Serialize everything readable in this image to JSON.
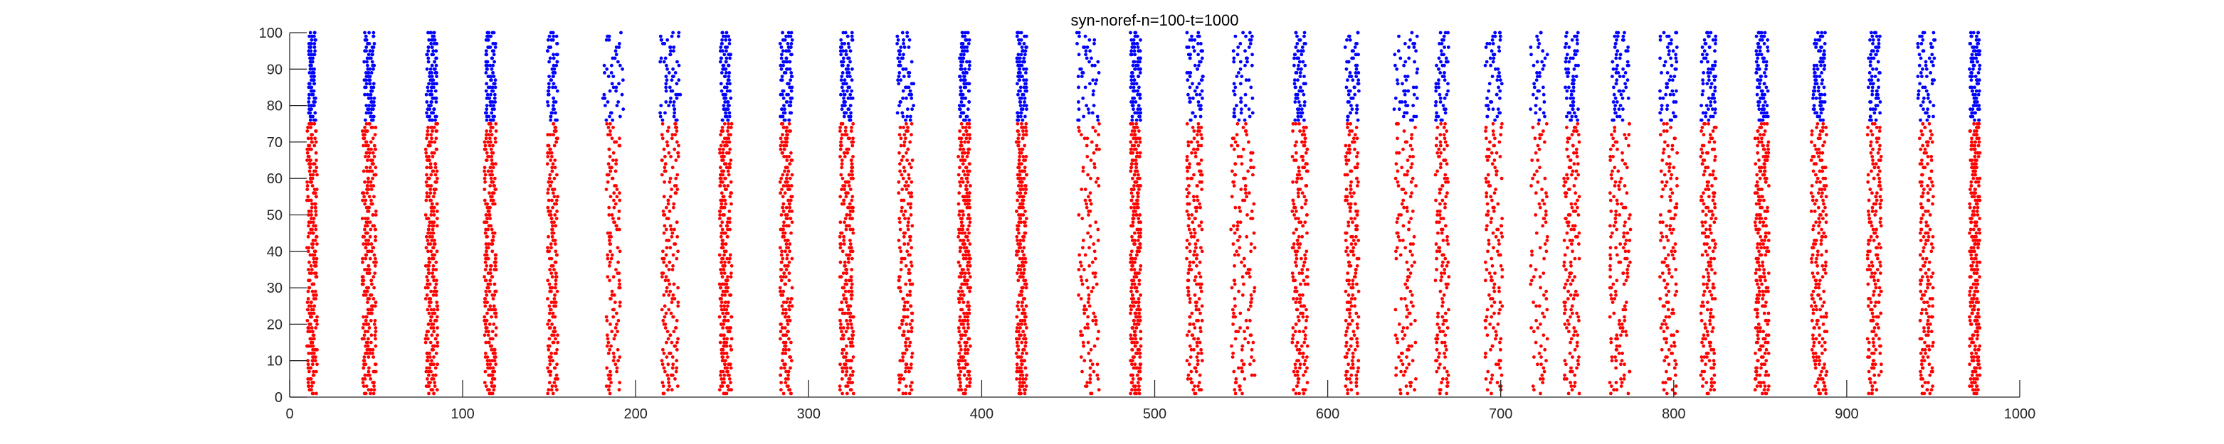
{
  "chart_data": {
    "type": "scatter",
    "title": "syn-noref-n=100-t=1000",
    "xlabel": "",
    "ylabel": "",
    "xlim": [
      0,
      1000
    ],
    "ylim": [
      0,
      100
    ],
    "xticks": [
      0,
      100,
      200,
      300,
      400,
      500,
      600,
      700,
      800,
      900,
      1000
    ],
    "yticks": [
      0,
      10,
      20,
      30,
      40,
      50,
      60,
      70,
      80,
      90,
      100
    ],
    "grid": false,
    "legend": "none",
    "series": [
      {
        "color": "#ff0000",
        "neurons": [
          1,
          75
        ]
      },
      {
        "color": "#0000ff",
        "neurons": [
          76,
          100
        ]
      }
    ],
    "bursts": [
      {
        "center": 13,
        "red_width": 6,
        "blue_width": 4,
        "red_density": 0.8,
        "blue_density": 0.9
      },
      {
        "center": 46,
        "red_width": 8,
        "blue_width": 6,
        "red_density": 0.9,
        "blue_density": 0.95
      },
      {
        "center": 82,
        "red_width": 7,
        "blue_width": 6,
        "red_density": 0.85,
        "blue_density": 0.9
      },
      {
        "center": 116,
        "red_width": 7,
        "blue_width": 6,
        "red_density": 0.85,
        "blue_density": 0.9
      },
      {
        "center": 152,
        "red_width": 6,
        "blue_width": 6,
        "red_density": 0.55,
        "blue_density": 0.6
      },
      {
        "center": 187,
        "red_width": 8,
        "blue_width": 12,
        "red_density": 0.35,
        "blue_density": 0.4
      },
      {
        "center": 220,
        "red_width": 10,
        "blue_width": 12,
        "red_density": 0.5,
        "blue_density": 0.55
      },
      {
        "center": 252,
        "red_width": 7,
        "blue_width": 6,
        "red_density": 0.85,
        "blue_density": 0.9
      },
      {
        "center": 287,
        "red_width": 7,
        "blue_width": 7,
        "red_density": 0.75,
        "blue_density": 0.85
      },
      {
        "center": 322,
        "red_width": 8,
        "blue_width": 7,
        "red_density": 0.8,
        "blue_density": 0.85
      },
      {
        "center": 356,
        "red_width": 8,
        "blue_width": 10,
        "red_density": 0.55,
        "blue_density": 0.55
      },
      {
        "center": 390,
        "red_width": 7,
        "blue_width": 6,
        "red_density": 0.85,
        "blue_density": 0.9
      },
      {
        "center": 423,
        "red_width": 6,
        "blue_width": 6,
        "red_density": 0.85,
        "blue_density": 0.85
      },
      {
        "center": 462,
        "red_width": 12,
        "blue_width": 14,
        "red_density": 0.3,
        "blue_density": 0.4
      },
      {
        "center": 489,
        "red_width": 6,
        "blue_width": 6,
        "red_density": 0.9,
        "blue_density": 0.9
      },
      {
        "center": 523,
        "red_width": 9,
        "blue_width": 10,
        "red_density": 0.55,
        "blue_density": 0.6
      },
      {
        "center": 551,
        "red_width": 14,
        "blue_width": 12,
        "red_density": 0.4,
        "blue_density": 0.45
      },
      {
        "center": 584,
        "red_width": 9,
        "blue_width": 7,
        "red_density": 0.6,
        "blue_density": 0.7
      },
      {
        "center": 614,
        "red_width": 8,
        "blue_width": 8,
        "red_density": 0.5,
        "blue_density": 0.55
      },
      {
        "center": 645,
        "red_width": 12,
        "blue_width": 14,
        "red_density": 0.35,
        "blue_density": 0.4
      },
      {
        "center": 666,
        "red_width": 8,
        "blue_width": 8,
        "red_density": 0.4,
        "blue_density": 0.45
      },
      {
        "center": 696,
        "red_width": 10,
        "blue_width": 10,
        "red_density": 0.4,
        "blue_density": 0.45
      },
      {
        "center": 722,
        "red_width": 10,
        "blue_width": 10,
        "red_density": 0.15,
        "blue_density": 0.2
      },
      {
        "center": 741,
        "red_width": 9,
        "blue_width": 8,
        "red_density": 0.45,
        "blue_density": 0.55
      },
      {
        "center": 769,
        "red_width": 12,
        "blue_width": 10,
        "red_density": 0.45,
        "blue_density": 0.5
      },
      {
        "center": 797,
        "red_width": 10,
        "blue_width": 10,
        "red_density": 0.35,
        "blue_density": 0.45
      },
      {
        "center": 820,
        "red_width": 9,
        "blue_width": 9,
        "red_density": 0.6,
        "blue_density": 0.7
      },
      {
        "center": 851,
        "red_width": 8,
        "blue_width": 7,
        "red_density": 0.8,
        "blue_density": 0.85
      },
      {
        "center": 884,
        "red_width": 9,
        "blue_width": 7,
        "red_density": 0.7,
        "blue_density": 0.8
      },
      {
        "center": 916,
        "red_width": 8,
        "blue_width": 7,
        "red_density": 0.55,
        "blue_density": 0.6
      },
      {
        "center": 946,
        "red_width": 8,
        "blue_width": 10,
        "red_density": 0.55,
        "blue_density": 0.55
      },
      {
        "center": 974,
        "red_width": 6,
        "blue_width": 6,
        "red_density": 0.95,
        "blue_density": 0.95
      }
    ]
  }
}
